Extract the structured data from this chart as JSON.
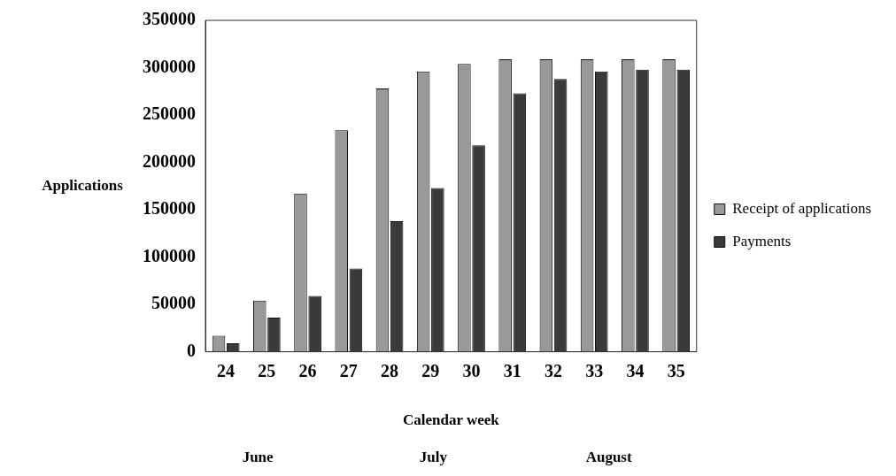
{
  "chart_data": {
    "type": "bar",
    "xlabel": "Calendar week",
    "ylabel": "Applications",
    "categories": [
      "24",
      "25",
      "26",
      "27",
      "28",
      "29",
      "30",
      "31",
      "32",
      "33",
      "34",
      "35"
    ],
    "series": [
      {
        "name": "Receipt of applications",
        "color": "#999999",
        "values": [
          17000,
          54000,
          167000,
          234000,
          278000,
          296000,
          304000,
          309000,
          309000,
          309000,
          309000,
          309000
        ]
      },
      {
        "name": "Payments",
        "color": "#3a3a3a",
        "values": [
          9000,
          36000,
          59000,
          88000,
          138000,
          173000,
          218000,
          273000,
          288000,
          296000,
          298000,
          298000
        ]
      }
    ],
    "ylim": [
      0,
      350000
    ],
    "yticks": [
      0,
      50000,
      100000,
      150000,
      200000,
      250000,
      300000,
      350000
    ],
    "grid": false,
    "legend": "right",
    "annotations": [
      "June",
      "July",
      "August"
    ]
  }
}
